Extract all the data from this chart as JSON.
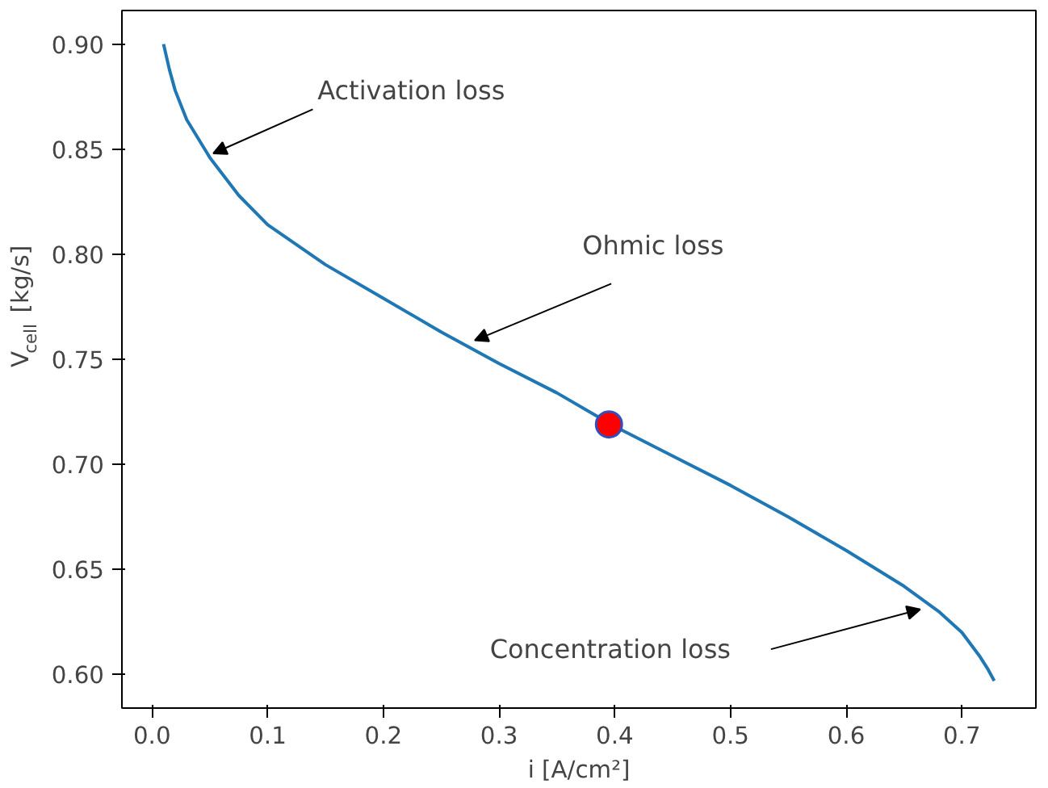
{
  "chart_data": {
    "type": "line",
    "xlabel": "i [A/cm²]",
    "ylabel": "V$_{cell}$ [kg/s]",
    "xlim": [
      -0.026,
      0.764
    ],
    "ylim": [
      0.584,
      0.916
    ],
    "xticks": [
      {
        "value": 0,
        "label": "0.0"
      },
      {
        "value": 0.1,
        "label": "0.1"
      },
      {
        "value": 0.2,
        "label": "0.2"
      },
      {
        "value": 0.3,
        "label": "0.3"
      },
      {
        "value": 0.4,
        "label": "0.4"
      },
      {
        "value": 0.5,
        "label": "0.5"
      },
      {
        "value": 0.6,
        "label": "0.6"
      },
      {
        "value": 0.7,
        "label": "0.7"
      }
    ],
    "yticks": [
      {
        "value": 0.6,
        "label": "0.60"
      },
      {
        "value": 0.65,
        "label": "0.65"
      },
      {
        "value": 0.7,
        "label": "0.70"
      },
      {
        "value": 0.75,
        "label": "0.75"
      },
      {
        "value": 0.8,
        "label": "0.80"
      },
      {
        "value": 0.85,
        "label": "0.85"
      },
      {
        "value": 0.9,
        "label": "0.90"
      }
    ],
    "grid": false,
    "series": [
      {
        "color": "#1f77b4",
        "marker": "none",
        "x": [
          0.01,
          0.015,
          0.02,
          0.03,
          0.05,
          0.075,
          0.1,
          0.15,
          0.2,
          0.25,
          0.3,
          0.35,
          0.4,
          0.45,
          0.5,
          0.55,
          0.6,
          0.65,
          0.68,
          0.7,
          0.715,
          0.722,
          0.728
        ],
        "values": [
          0.9,
          0.888,
          0.878,
          0.864,
          0.846,
          0.828,
          0.814,
          0.795,
          0.779,
          0.763,
          0.748,
          0.734,
          0.718,
          0.704,
          0.69,
          0.675,
          0.659,
          0.642,
          0.63,
          0.62,
          0.609,
          0.603,
          0.597
        ]
      },
      {
        "type": "scatter",
        "color": "#ff0000",
        "marker": "circle",
        "x": [
          0.395
        ],
        "values": [
          0.719
        ]
      }
    ],
    "annotations": [
      {
        "text": "Activation loss",
        "x": 0.053,
        "y": 0.848
      },
      {
        "text": "Ohmic loss",
        "x": 0.279,
        "y": 0.759
      },
      "Concentration loss"
    ]
  }
}
